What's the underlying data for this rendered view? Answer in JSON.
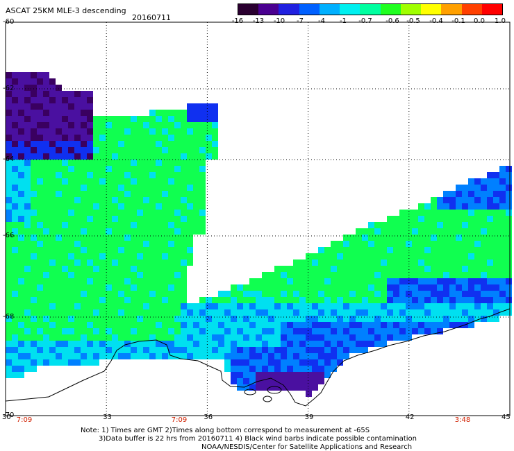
{
  "header": {
    "title": "ASCAT 25KM MLE-3 descending",
    "date": "20160711"
  },
  "colorbar": {
    "labels": [
      "-16",
      "-13",
      "-10",
      "-7",
      "-4",
      "-1",
      "-0.7",
      "-0.6",
      "-0.5",
      "-0.4",
      "-0.1",
      "0.0",
      "1.0"
    ],
    "colors": [
      "#2a0030",
      "#4a0090",
      "#2020e0",
      "#0060ff",
      "#00b0ff",
      "#00f0f0",
      "#00ffa0",
      "#20ff20",
      "#a0ff00",
      "#ffff00",
      "#ffa000",
      "#ff4000",
      "#ff0000"
    ]
  },
  "map": {
    "lat_labels": [
      "-60",
      "-62",
      "-64",
      "-66",
      "-68",
      "-70"
    ],
    "lon_labels": [
      "30",
      "33",
      "36",
      "39",
      "42",
      "45"
    ],
    "time_labels": [
      "7:09",
      "7:09",
      "3:48"
    ],
    "colors": {
      "purple_dark": "#3a0060",
      "purple": "#4a10a0",
      "blue": "#1030f0",
      "azure": "#0080ff",
      "cyan": "#00e0f0",
      "green": "#10ff50",
      "coast": "#000000",
      "grid": "#000000"
    }
  },
  "footer": {
    "note_line1": "Note: 1) Times are GMT 2)Times along bottom correspond to measurement at -65S",
    "note_line2": "3)Data buffer is 22 hrs from 20160711 4) Black wind barbs indicate possible contamination",
    "note_line3": "NOAA/NESDIS/Center for Satellite Applications and Research"
  }
}
